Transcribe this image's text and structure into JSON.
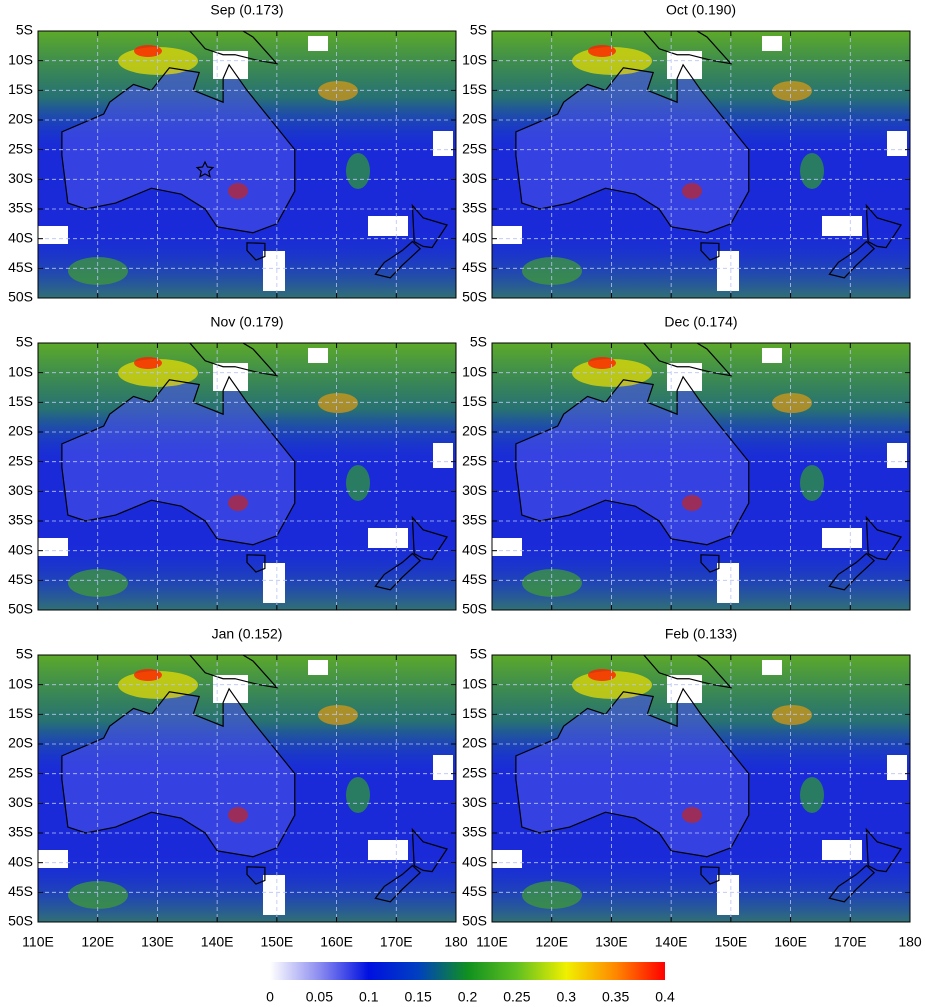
{
  "panels": [
    {
      "title": "Sep (0.173)"
    },
    {
      "title": "Oct (0.190)"
    },
    {
      "title": "Nov (0.179)"
    },
    {
      "title": "Dec (0.174)"
    },
    {
      "title": "Jan (0.152)"
    },
    {
      "title": "Feb (0.133)"
    }
  ],
  "lat_range": [
    -5,
    -50
  ],
  "lat_ticks": [
    {
      "value": -5,
      "label": "5S"
    },
    {
      "value": -10,
      "label": "10S"
    },
    {
      "value": -15,
      "label": "15S"
    },
    {
      "value": -20,
      "label": "20S"
    },
    {
      "value": -25,
      "label": "25S"
    },
    {
      "value": -30,
      "label": "30S"
    },
    {
      "value": -35,
      "label": "35S"
    },
    {
      "value": -40,
      "label": "40S"
    },
    {
      "value": -45,
      "label": "45S"
    },
    {
      "value": -50,
      "label": "50S"
    }
  ],
  "lon_range": [
    110,
    180
  ],
  "lon_ticks": [
    {
      "value": 110,
      "label": "110E"
    },
    {
      "value": 120,
      "label": "120E"
    },
    {
      "value": 130,
      "label": "130E"
    },
    {
      "value": 140,
      "label": "140E"
    },
    {
      "value": 150,
      "label": "150E"
    },
    {
      "value": 160,
      "label": "160E"
    },
    {
      "value": 170,
      "label": "170E"
    },
    180
  ],
  "colorbar": {
    "range": [
      0,
      0.4
    ],
    "ticks": [
      0,
      0.05,
      0.1,
      0.15,
      0.2,
      0.25,
      0.3,
      0.35,
      0.4
    ]
  }
}
